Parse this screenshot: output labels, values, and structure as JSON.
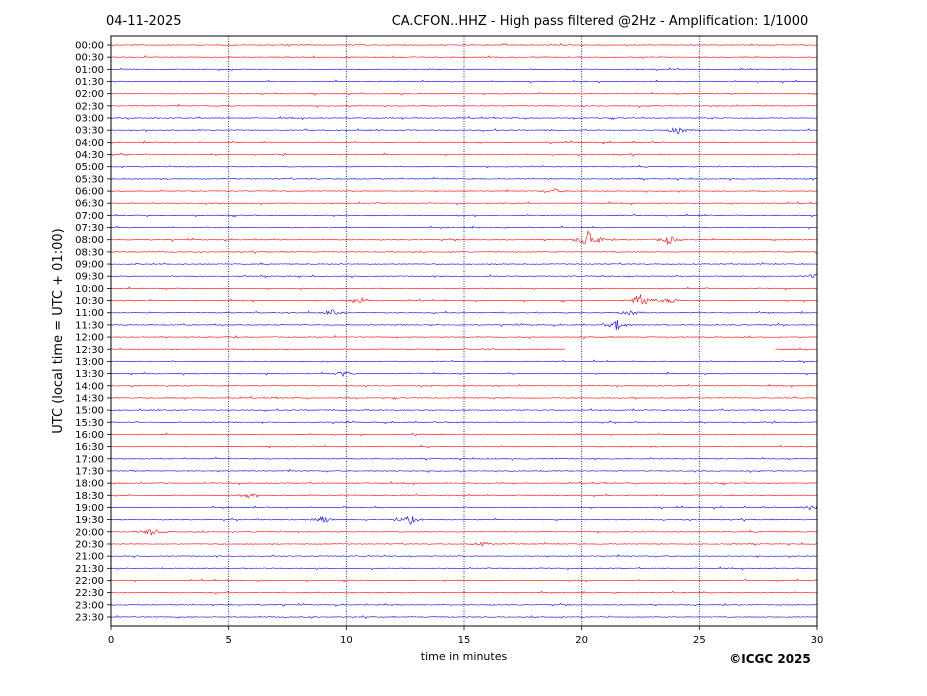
{
  "header": {
    "date": "04-11-2025",
    "title": "CA.CFON..HHZ - High pass filtered @2Hz - Amplification: 1/1000"
  },
  "footer": {
    "copyright": "©ICGC 2025"
  },
  "colors": {
    "red_trace": "#ff0000",
    "blue_trace": "#0000ff",
    "grid": "#000080",
    "frame": "#000000"
  },
  "chart_data": {
    "type": "line",
    "title": "CA.CFON..HHZ - High pass filtered @2Hz - Amplification: 1/1000",
    "xlabel": "time in minutes",
    "ylabel": "UTC (local time = UTC + 01:00)",
    "xlim": [
      0,
      30
    ],
    "xticks": [
      "0",
      "5",
      "10",
      "15",
      "20",
      "25",
      "30"
    ],
    "vertical_grid_at": [
      5,
      10,
      15,
      20,
      25
    ],
    "grid_style": "dotted",
    "row_colors": [
      "red",
      "red",
      "blue",
      "blue"
    ],
    "rows": [
      "00:00",
      "00:30",
      "01:00",
      "01:30",
      "02:00",
      "02:30",
      "03:00",
      "03:30",
      "04:00",
      "04:30",
      "05:00",
      "05:30",
      "06:00",
      "06:30",
      "07:00",
      "07:30",
      "08:00",
      "08:30",
      "09:00",
      "09:30",
      "10:00",
      "10:30",
      "11:00",
      "11:30",
      "12:00",
      "12:30",
      "13:00",
      "13:30",
      "14:00",
      "14:30",
      "15:00",
      "15:30",
      "16:00",
      "16:30",
      "17:00",
      "17:30",
      "18:00",
      "18:30",
      "19:00",
      "19:30",
      "20:00",
      "20:30",
      "21:00",
      "21:30",
      "22:00",
      "22:30",
      "23:00",
      "23:30"
    ],
    "events": [
      {
        "row": "03:30",
        "minute": 24.1,
        "amplitude": 0.3
      },
      {
        "row": "06:00",
        "minute": 18.8,
        "amplitude": 0.2
      },
      {
        "row": "08:00",
        "minute": 20.3,
        "amplitude": 0.9
      },
      {
        "row": "08:00",
        "minute": 23.7,
        "amplitude": 0.35
      },
      {
        "row": "09:30",
        "minute": 30.0,
        "amplitude": 0.3
      },
      {
        "row": "10:30",
        "minute": 10.6,
        "amplitude": 0.25
      },
      {
        "row": "10:30",
        "minute": 22.5,
        "amplitude": 0.6
      },
      {
        "row": "10:30",
        "minute": 23.8,
        "amplitude": 0.2
      },
      {
        "row": "11:00",
        "minute": 9.4,
        "amplitude": 0.2
      },
      {
        "row": "11:00",
        "minute": 22.1,
        "amplitude": 0.2
      },
      {
        "row": "11:30",
        "minute": 21.5,
        "amplitude": 0.4
      },
      {
        "row": "13:30",
        "minute": 9.9,
        "amplitude": 0.2
      },
      {
        "row": "18:30",
        "minute": 5.8,
        "amplitude": 0.2
      },
      {
        "row": "19:00",
        "minute": 29.8,
        "amplitude": 0.3
      },
      {
        "row": "19:30",
        "minute": 12.7,
        "amplitude": 0.35
      },
      {
        "row": "19:30",
        "minute": 9.0,
        "amplitude": 0.25
      },
      {
        "row": "20:00",
        "minute": 1.7,
        "amplitude": 0.25
      },
      {
        "row": "20:30",
        "minute": 15.8,
        "amplitude": 0.15
      }
    ],
    "gaps": [
      {
        "row": "12:30",
        "from": 19.3,
        "to": 28.2
      }
    ]
  }
}
